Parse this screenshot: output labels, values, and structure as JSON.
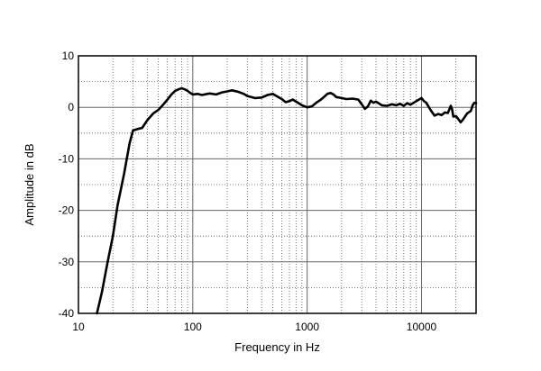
{
  "chart_data": {
    "type": "line",
    "xlabel": "Frequency in Hz",
    "ylabel": "Amplitude in dB",
    "x_scale": "log",
    "xlim": [
      10,
      30000
    ],
    "ylim": [
      -40,
      10
    ],
    "x_ticks": [
      10,
      100,
      1000,
      10000
    ],
    "x_tick_labels": [
      "10",
      "100",
      "1000",
      "10000"
    ],
    "y_ticks": [
      10,
      0,
      -10,
      -20,
      -30,
      -40
    ],
    "y_tick_labels": [
      "10",
      "0",
      "-10",
      "-20",
      "-30",
      "-40"
    ],
    "grid": true,
    "series": [
      {
        "color": "#000000",
        "points": [
          [
            14.5,
            -40
          ],
          [
            16,
            -36
          ],
          [
            18,
            -30
          ],
          [
            20,
            -25
          ],
          [
            22,
            -19
          ],
          [
            25,
            -13
          ],
          [
            28,
            -7
          ],
          [
            30,
            -4.5
          ],
          [
            33,
            -4.2
          ],
          [
            36,
            -4
          ],
          [
            40,
            -2.5
          ],
          [
            45,
            -1.2
          ],
          [
            50,
            -0.5
          ],
          [
            55,
            0.5
          ],
          [
            60,
            1.5
          ],
          [
            65,
            2.5
          ],
          [
            70,
            3.2
          ],
          [
            75,
            3.5
          ],
          [
            80,
            3.7
          ],
          [
            85,
            3.5
          ],
          [
            90,
            3.2
          ],
          [
            95,
            2.8
          ],
          [
            100,
            2.5
          ],
          [
            110,
            2.6
          ],
          [
            120,
            2.4
          ],
          [
            140,
            2.7
          ],
          [
            160,
            2.5
          ],
          [
            180,
            2.9
          ],
          [
            200,
            3.1
          ],
          [
            220,
            3.3
          ],
          [
            250,
            3.0
          ],
          [
            280,
            2.6
          ],
          [
            300,
            2.2
          ],
          [
            350,
            1.8
          ],
          [
            400,
            1.9
          ],
          [
            450,
            2.4
          ],
          [
            500,
            2.6
          ],
          [
            550,
            2.1
          ],
          [
            600,
            1.6
          ],
          [
            650,
            1.0
          ],
          [
            700,
            1.2
          ],
          [
            750,
            1.5
          ],
          [
            800,
            1.1
          ],
          [
            900,
            0.4
          ],
          [
            1000,
            0
          ],
          [
            1100,
            0.2
          ],
          [
            1200,
            0.9
          ],
          [
            1300,
            1.4
          ],
          [
            1400,
            2.0
          ],
          [
            1500,
            2.6
          ],
          [
            1600,
            2.8
          ],
          [
            1700,
            2.5
          ],
          [
            1800,
            2.0
          ],
          [
            2000,
            1.8
          ],
          [
            2200,
            1.6
          ],
          [
            2500,
            1.7
          ],
          [
            2800,
            1.5
          ],
          [
            3000,
            0.6
          ],
          [
            3200,
            -0.3
          ],
          [
            3400,
            0.2
          ],
          [
            3600,
            1.3
          ],
          [
            3800,
            0.9
          ],
          [
            4000,
            1.1
          ],
          [
            4500,
            0.4
          ],
          [
            5000,
            0.3
          ],
          [
            5500,
            0.6
          ],
          [
            6000,
            0.4
          ],
          [
            6500,
            0.7
          ],
          [
            7000,
            0.3
          ],
          [
            7500,
            0.8
          ],
          [
            8000,
            0.5
          ],
          [
            9000,
            1.2
          ],
          [
            10000,
            1.8
          ],
          [
            10500,
            1.2
          ],
          [
            11000,
            0.9
          ],
          [
            12000,
            -0.5
          ],
          [
            13000,
            -1.6
          ],
          [
            14000,
            -1.3
          ],
          [
            15000,
            -1.5
          ],
          [
            16000,
            -1.0
          ],
          [
            17000,
            -1.1
          ],
          [
            18000,
            0.3
          ],
          [
            18500,
            -0.4
          ],
          [
            19000,
            -1.8
          ],
          [
            20000,
            -1.7
          ],
          [
            21000,
            -2.3
          ],
          [
            22000,
            -2.9
          ],
          [
            23000,
            -2.4
          ],
          [
            24000,
            -1.8
          ],
          [
            25000,
            -1.2
          ],
          [
            27000,
            -0.7
          ],
          [
            28000,
            0.4
          ],
          [
            29000,
            0.9
          ],
          [
            30000,
            0.8
          ]
        ]
      }
    ]
  }
}
